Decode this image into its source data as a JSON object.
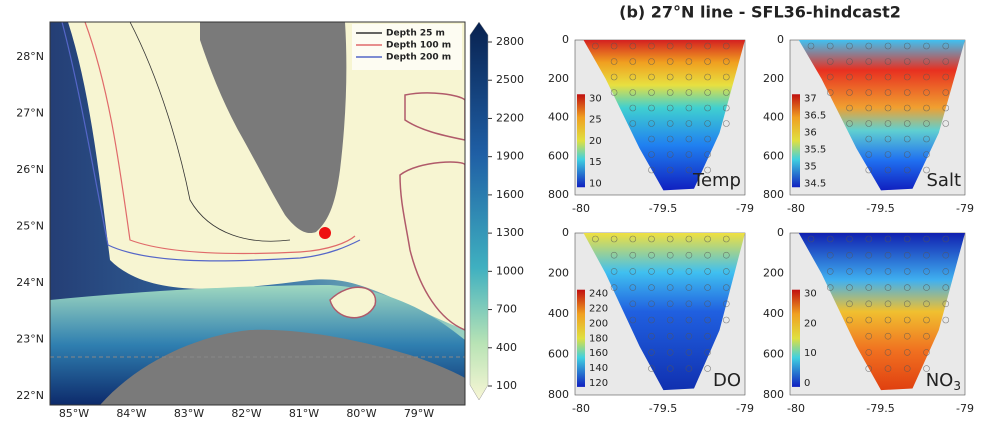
{
  "map": {
    "lat_labels": [
      "28°N",
      "27°N",
      "26°N",
      "25°N",
      "24°N",
      "23°N",
      "22°N"
    ],
    "lon_labels": [
      "85°W",
      "84°W",
      "83°W",
      "82°W",
      "81°W",
      "80°W",
      "79°W"
    ],
    "legend": [
      {
        "name": "Depth 25 m",
        "color": "#333333"
      },
      {
        "name": "Depth 100 m",
        "color": "#e06a6a"
      },
      {
        "name": "Depth 200 m",
        "color": "#5566c8"
      }
    ],
    "colorbar_ticks": [
      2800,
      2500,
      2200,
      1900,
      1600,
      1300,
      1000,
      700,
      400,
      100
    ]
  },
  "section": {
    "title": "(b) 27°N line - SFL36-hindcast2",
    "x_ticks": [
      -80,
      -79.5,
      -79
    ],
    "y_ticks": [
      0,
      200,
      400,
      600,
      800
    ],
    "panels": [
      {
        "label": "Temp",
        "colorbar_ticks": [
          30,
          25,
          20,
          15,
          10
        ]
      },
      {
        "label": "Salt",
        "colorbar_ticks": [
          37,
          36.5,
          36,
          35.5,
          35,
          34.5
        ]
      },
      {
        "label": "DO",
        "colorbar_ticks": [
          240,
          220,
          200,
          180,
          160,
          140,
          120
        ]
      },
      {
        "label": "NO",
        "label_sub": "3",
        "colorbar_ticks": [
          30,
          20,
          10,
          0
        ]
      }
    ]
  }
}
